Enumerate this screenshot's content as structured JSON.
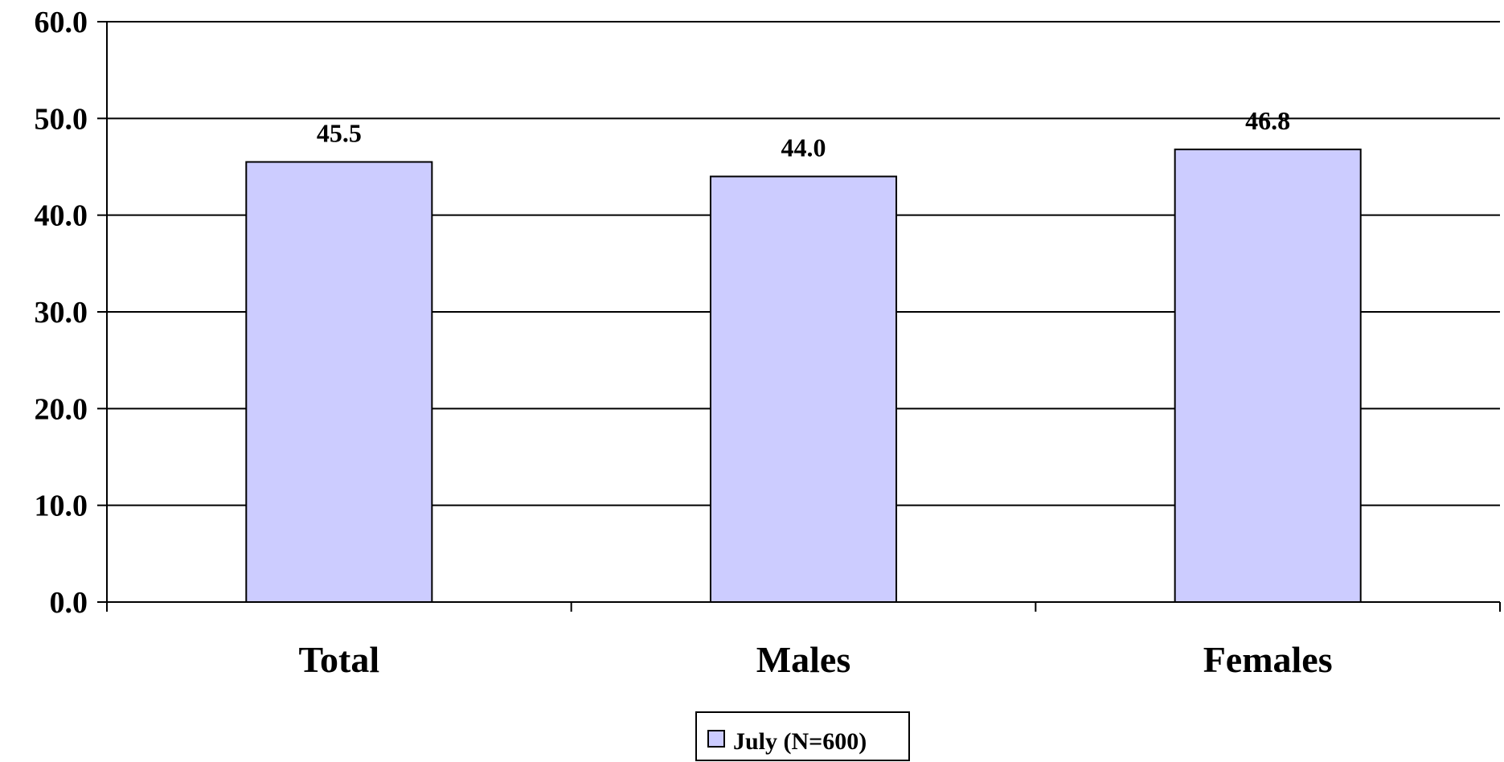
{
  "chart_data": {
    "type": "bar",
    "categories": [
      "Total",
      "Males",
      "Females"
    ],
    "series": [
      {
        "name": "July (N=600)",
        "values": [
          45.5,
          44.0,
          46.8
        ],
        "color": "#CCCCFF"
      }
    ],
    "data_labels": [
      "45.5",
      "44.0",
      "46.8"
    ],
    "y_ticks": [
      "0.0",
      "10.0",
      "20.0",
      "30.0",
      "40.0",
      "50.0",
      "60.0"
    ],
    "ylim": [
      0,
      60
    ],
    "grid": true,
    "legend_position": "bottom",
    "title": "",
    "xlabel": "",
    "ylabel": ""
  }
}
